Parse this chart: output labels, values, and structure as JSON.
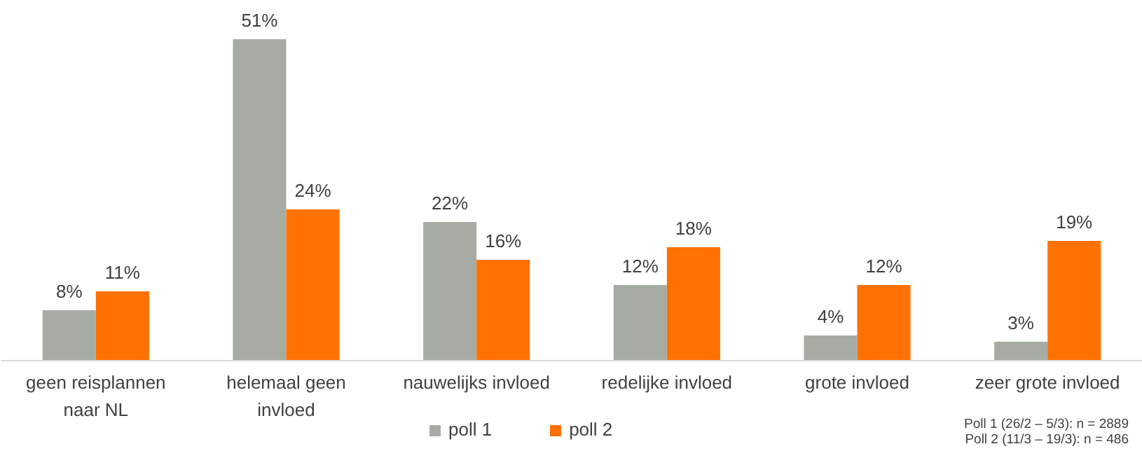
{
  "chart_data": {
    "type": "bar",
    "categories": [
      "geen reisplannen naar NL",
      "helemaal geen invloed",
      "nauwelijks invloed",
      "redelijke invloed",
      "grote invloed",
      "zeer grote invloed"
    ],
    "series": [
      {
        "name": "poll 1",
        "color": "#a6aca4",
        "values": [
          8,
          51,
          22,
          12,
          4,
          3
        ],
        "value_labels": [
          "8%",
          "51%",
          "22%",
          "12%",
          "4%",
          "3%"
        ]
      },
      {
        "name": "poll 2",
        "color": "#ff7100",
        "values": [
          11,
          24,
          16,
          18,
          12,
          19
        ],
        "value_labels": [
          "11%",
          "24%",
          "16%",
          "18%",
          "12%",
          "19%"
        ]
      }
    ],
    "legend": "bottom",
    "annotations": [
      "Poll 1 (26/2 – 5/3): n = 2889",
      "Poll 2 (11/3 – 19/3): n = 486"
    ]
  }
}
